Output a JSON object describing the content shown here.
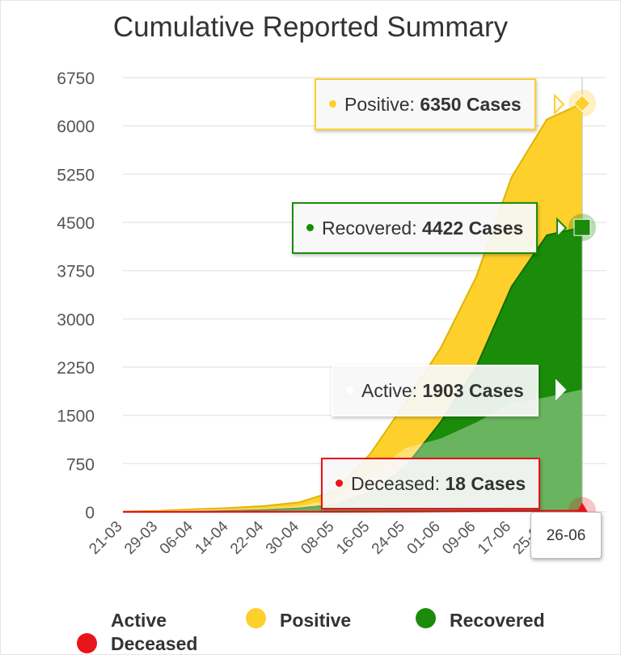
{
  "chart_data": {
    "type": "area",
    "title": "Cumulative Reported Summary",
    "xlabel": "",
    "ylabel": "",
    "ylim": [
      0,
      6750
    ],
    "yticks": [
      0,
      750,
      1500,
      2250,
      3000,
      3750,
      4500,
      5250,
      6000,
      6750
    ],
    "xtick_labels": [
      "21-03",
      "29-03",
      "06-04",
      "14-04",
      "22-04",
      "30-04",
      "08-05",
      "16-05",
      "24-05",
      "01-06",
      "09-06",
      "17-06",
      "25-06"
    ],
    "grid": true,
    "legend_placement": "bottom",
    "x": [
      "21-03",
      "29-03",
      "06-04",
      "14-04",
      "22-04",
      "30-04",
      "08-05",
      "16-05",
      "24-05",
      "01-06",
      "09-06",
      "17-06",
      "25-06",
      "26-06"
    ],
    "series": [
      {
        "name": "Positive",
        "color": "#fdd02c",
        "values": [
          5,
          15,
          40,
          60,
          90,
          150,
          320,
          900,
          1700,
          2550,
          3650,
          5200,
          6100,
          6350
        ]
      },
      {
        "name": "Recovered",
        "color": "#1a8c09",
        "values": [
          0,
          0,
          5,
          15,
          30,
          55,
          110,
          300,
          700,
          1400,
          2250,
          3500,
          4300,
          4422
        ]
      },
      {
        "name": "Active",
        "color": "#ffffff",
        "values": [
          5,
          15,
          35,
          45,
          58,
          92,
          205,
          595,
          990,
          1140,
          1390,
          1690,
          1784,
          1903
        ]
      },
      {
        "name": "Deceased",
        "color": "#e8141c",
        "values": [
          0,
          0,
          0,
          1,
          1,
          2,
          3,
          4,
          6,
          9,
          12,
          15,
          17,
          18
        ]
      }
    ]
  },
  "tooltips": {
    "positive": {
      "label": "Positive:",
      "value": "6350 Cases",
      "color": "#fdd02c"
    },
    "recovered": {
      "label": "Recovered:",
      "value": "4422 Cases",
      "color": "#1a8c09"
    },
    "active": {
      "label": "Active:",
      "value": "1903 Cases",
      "color": "#ffffff"
    },
    "deceased": {
      "label": "Deceased:",
      "value": "18 Cases",
      "color": "#e8141c"
    },
    "date": "26-06"
  },
  "legend": [
    {
      "label": "Active",
      "color": "#ffffff"
    },
    {
      "label": "Positive",
      "color": "#fdd02c"
    },
    {
      "label": "Recovered",
      "color": "#1a8c09"
    },
    {
      "label": "Deceased",
      "color": "#e8141c"
    }
  ]
}
